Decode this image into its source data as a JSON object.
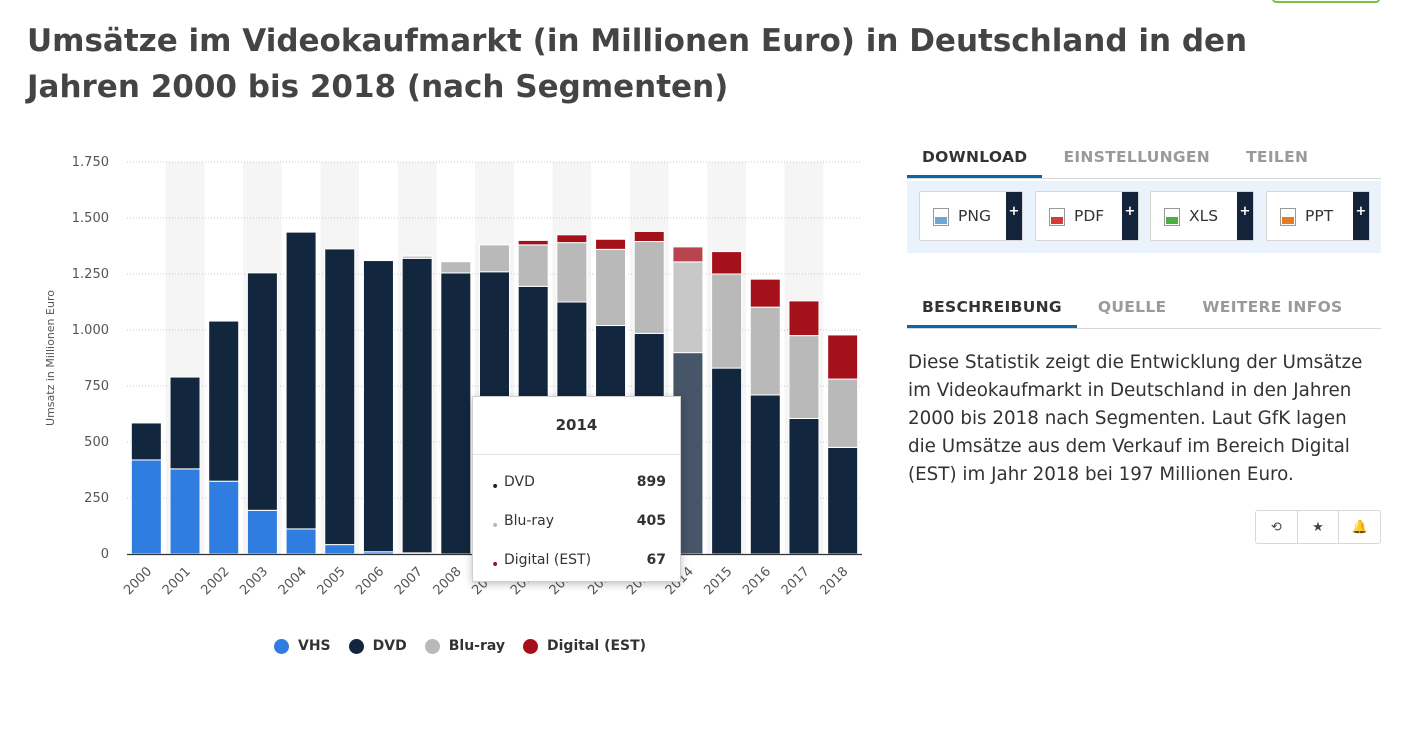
{
  "title": "Umsätze im Videokaufmarkt (in Millionen Euro) in Deutschland in den Jahren 2000 bis 2018 (nach Segmenten)",
  "colors": {
    "vhs": "#2f7de1",
    "dvd": "#12263d",
    "bluray": "#b9b9b9",
    "digital": "#a5111b",
    "accent": "#0a66a8",
    "highlight_fade": "rgba(255,255,255,0.22)"
  },
  "chart_data": {
    "type": "bar",
    "stacked": true,
    "xlabel": "",
    "ylabel": "Umsatz in Millionen Euro",
    "ylim": [
      0,
      1750
    ],
    "y_ticks": [
      0,
      250,
      500,
      750,
      1000,
      1250,
      1500,
      1750
    ],
    "y_tick_labels": [
      "0",
      "250",
      "500",
      "750",
      "1.000",
      "1.250",
      "1.500",
      "1.750"
    ],
    "grid": true,
    "legend_position": "bottom",
    "categories": [
      "2000",
      "2001",
      "2002",
      "2003",
      "2004",
      "2005",
      "2006",
      "2007",
      "2008",
      "2009",
      "2010",
      "2011",
      "2012",
      "2013",
      "2014",
      "2015",
      "2016",
      "2017",
      "2018"
    ],
    "series": [
      {
        "name": "VHS",
        "color": "#2f7de1",
        "values": [
          420,
          380,
          325,
          195,
          112,
          42,
          10,
          5,
          0,
          0,
          0,
          0,
          0,
          0,
          0,
          0,
          0,
          0,
          0
        ]
      },
      {
        "name": "DVD",
        "color": "#12263d",
        "values": [
          165,
          410,
          715,
          1060,
          1325,
          1320,
          1300,
          1315,
          1255,
          1260,
          1195,
          1125,
          1020,
          985,
          899,
          830,
          710,
          605,
          476
        ]
      },
      {
        "name": "Blu-ray",
        "color": "#b9b9b9",
        "values": [
          0,
          0,
          0,
          0,
          0,
          0,
          0,
          10,
          50,
          120,
          185,
          265,
          340,
          410,
          405,
          420,
          392,
          370,
          305
        ]
      },
      {
        "name": "Digital (EST)",
        "color": "#a5111b",
        "values": [
          0,
          0,
          0,
          0,
          0,
          0,
          0,
          0,
          0,
          0,
          20,
          35,
          45,
          45,
          67,
          100,
          125,
          155,
          197
        ]
      }
    ],
    "highlight_category": "2014"
  },
  "tooltip": {
    "title": "2014",
    "rows": [
      {
        "label": "DVD",
        "value": "899",
        "color": "#12263d"
      },
      {
        "label": "Blu-ray",
        "value": "405",
        "color": "#b9b9b9"
      },
      {
        "label": "Digital (EST)",
        "value": "67",
        "color": "#a5111b"
      }
    ]
  },
  "download_tabs": [
    "DOWNLOAD",
    "EINSTELLUNGEN",
    "TEILEN"
  ],
  "download_buttons": [
    {
      "label": "PNG",
      "icon": "png-file-icon",
      "icon_color": "#6aa8d8"
    },
    {
      "label": "PDF",
      "icon": "pdf-file-icon",
      "icon_color": "#d33a3a"
    },
    {
      "label": "XLS",
      "icon": "xls-file-icon",
      "icon_color": "#4caf3f"
    },
    {
      "label": "PPT",
      "icon": "ppt-file-icon",
      "icon_color": "#e57b24"
    }
  ],
  "plus_label": "+",
  "info_tabs": [
    "BESCHREIBUNG",
    "QUELLE",
    "WEITERE INFOS"
  ],
  "description": "Diese Statistik zeigt die Entwicklung der Umsätze im Videokaufmarkt in Deutschland in den Jahren 2000 bis 2018 nach Segmenten. Laut GfK lagen die Umsätze aus dem Verkauf im Bereich Digital (EST) im Jahr 2018 bei 197 Millionen Euro.",
  "actions": [
    {
      "name": "history-icon",
      "glyph": "⟲"
    },
    {
      "name": "star-icon",
      "glyph": "★"
    },
    {
      "name": "bell-icon",
      "glyph": "🔔"
    }
  ]
}
